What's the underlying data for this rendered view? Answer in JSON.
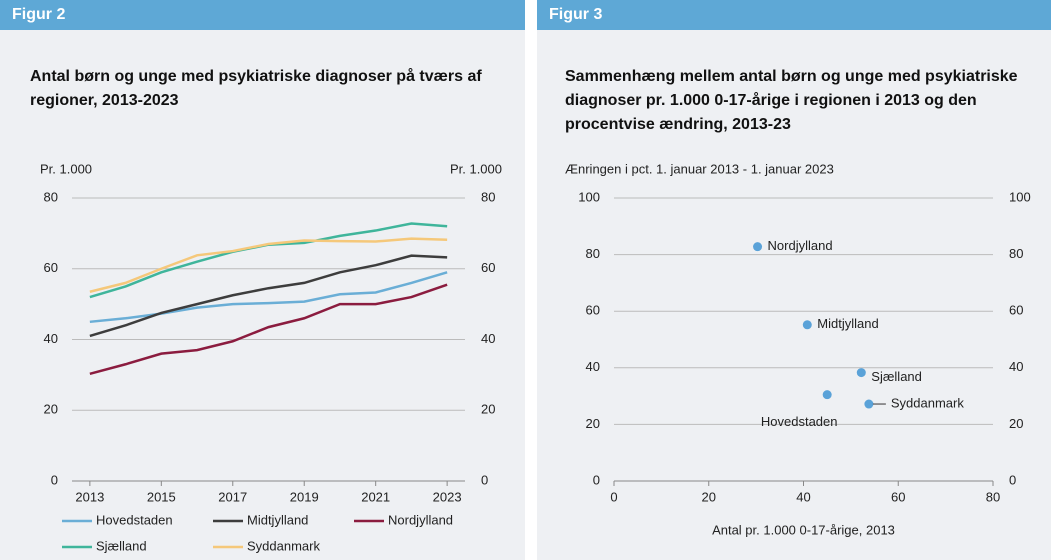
{
  "chart_data": [
    {
      "type": "line",
      "figure_label": "Figur 2",
      "title": "Antal børn og unge med psykiatriske diagnoser på tværs af regioner, 2013-2023",
      "y_label": "Pr. 1.000",
      "y2_label": "Pr. 1.000",
      "x": [
        2013,
        2014,
        2015,
        2016,
        2017,
        2018,
        2019,
        2020,
        2021,
        2022,
        2023
      ],
      "xlim": [
        2012.5,
        2023.5
      ],
      "xticks": [
        2013,
        2015,
        2017,
        2019,
        2021,
        2023
      ],
      "ylim": [
        0,
        80
      ],
      "yticks": [
        0,
        20,
        40,
        60,
        80
      ],
      "y2lim": [
        0,
        80
      ],
      "y2ticks": [
        0,
        20,
        40,
        60,
        80
      ],
      "grid": true,
      "series": [
        {
          "name": "Hovedstaden",
          "color": "#6aaed6",
          "values": [
            45,
            46,
            47.3,
            49,
            50,
            50.3,
            50.7,
            52.8,
            53.3,
            56,
            59
          ]
        },
        {
          "name": "Midtjylland",
          "color": "#3d3d3d",
          "values": [
            41,
            44,
            47.5,
            50,
            52.5,
            54.5,
            56,
            59,
            61,
            63.7,
            63.2
          ]
        },
        {
          "name": "Nordjylland",
          "color": "#8b1c3f",
          "values": [
            30.3,
            33,
            36,
            37,
            39.5,
            43.5,
            46,
            50,
            50,
            52,
            55.5
          ]
        },
        {
          "name": "Sjælland",
          "color": "#3fb59b",
          "values": [
            52,
            55,
            59,
            62,
            64.8,
            66.8,
            67.3,
            69.3,
            70.8,
            72.8,
            72
          ]
        },
        {
          "name": "Syddanmark",
          "color": "#f5c87a",
          "values": [
            53.5,
            56,
            60,
            63.8,
            65,
            67,
            68,
            67.8,
            67.7,
            68.5,
            68.2
          ]
        }
      ]
    },
    {
      "type": "scatter",
      "figure_label": "Figur 3",
      "title": "Sammenhæng mellem antal børn og unge med psykiatriske diagnoser pr. 1.000 0-17-årige i regionen i 2013 og den procentvise ændring, 2013-23",
      "y_label": "Ænringen i pct. 1. januar 2013 - 1. januar 2023",
      "x_label": "Antal pr. 1.000 0-17-årige, 2013",
      "xlim": [
        0,
        80
      ],
      "xticks": [
        0,
        20,
        40,
        60,
        80
      ],
      "ylim": [
        0,
        100
      ],
      "yticks": [
        0,
        20,
        40,
        60,
        80,
        100
      ],
      "y2lim": [
        0,
        100
      ],
      "y2ticks": [
        0,
        20,
        40,
        60,
        80,
        100
      ],
      "grid": true,
      "color": "#5aa2d8",
      "point_labels": [
        "Nordjylland",
        "Midtjylland",
        "Sjælland",
        "Hovedstaden",
        "Syddanmark"
      ],
      "x": [
        30.3,
        40.8,
        52.2,
        45,
        53.8
      ],
      "values": [
        82.8,
        55.2,
        38.3,
        30.5,
        27.2
      ]
    }
  ]
}
